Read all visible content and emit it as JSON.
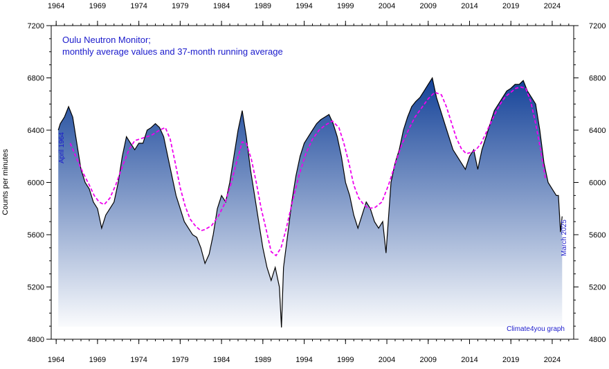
{
  "chart_data": {
    "type": "area",
    "title_line1": "Oulu Neutron Monitor;",
    "title_line2": "monthly average values and 37-month running average",
    "ylabel": "Counts per minutes",
    "start_label": "April 1964",
    "end_label": "March 2025",
    "credit": "Climate4you graph",
    "x_range": [
      1963.4,
      2026.6
    ],
    "ylim": [
      4800,
      7200
    ],
    "x_ticks": [
      1964,
      1969,
      1974,
      1979,
      1984,
      1989,
      1994,
      1999,
      2004,
      2009,
      2014,
      2019,
      2024
    ],
    "y_ticks": [
      4800,
      5200,
      5600,
      6000,
      6400,
      6800,
      7200
    ],
    "colors": {
      "fill_top": "#0a3a94",
      "fill_bottom": "#ffffff",
      "monthly_line": "#000000",
      "running_avg_line": "#ee00ee",
      "text": "#1a1acc"
    },
    "series": [
      {
        "style": "monthly",
        "x": [
          1964.25,
          1964.5,
          1965.0,
          1965.5,
          1966.0,
          1966.5,
          1967.0,
          1967.5,
          1968.0,
          1968.5,
          1969.0,
          1969.5,
          1970.0,
          1970.5,
          1971.0,
          1971.5,
          1972.0,
          1972.5,
          1973.0,
          1973.5,
          1974.0,
          1974.5,
          1975.0,
          1975.5,
          1976.0,
          1976.5,
          1977.0,
          1977.5,
          1978.0,
          1978.5,
          1979.0,
          1979.5,
          1980.0,
          1980.5,
          1981.0,
          1981.5,
          1982.0,
          1982.5,
          1983.0,
          1983.5,
          1984.0,
          1984.5,
          1985.0,
          1985.5,
          1986.0,
          1986.5,
          1987.0,
          1987.5,
          1988.0,
          1988.5,
          1989.0,
          1989.5,
          1990.0,
          1990.5,
          1991.0,
          1991.25,
          1991.5,
          1992.0,
          1992.5,
          1993.0,
          1993.5,
          1994.0,
          1994.5,
          1995.0,
          1995.5,
          1996.0,
          1996.5,
          1997.0,
          1997.5,
          1998.0,
          1998.5,
          1999.0,
          1999.5,
          2000.0,
          2000.5,
          2001.0,
          2001.5,
          2002.0,
          2002.5,
          2003.0,
          2003.5,
          2003.9,
          2004.5,
          2005.0,
          2005.5,
          2006.0,
          2006.5,
          2007.0,
          2007.5,
          2008.0,
          2008.5,
          2009.0,
          2009.5,
          2010.0,
          2010.5,
          2011.0,
          2011.5,
          2012.0,
          2012.5,
          2013.0,
          2013.5,
          2014.0,
          2014.5,
          2015.0,
          2015.5,
          2016.0,
          2016.5,
          2017.0,
          2017.5,
          2018.0,
          2018.5,
          2019.0,
          2019.5,
          2020.0,
          2020.5,
          2021.0,
          2021.5,
          2022.0,
          2022.5,
          2023.0,
          2023.5,
          2024.0,
          2024.5,
          2024.75,
          2025.0,
          2025.2
        ],
        "y": [
          6400,
          6450,
          6500,
          6580,
          6500,
          6300,
          6100,
          6000,
          5950,
          5850,
          5800,
          5650,
          5750,
          5800,
          5850,
          6000,
          6200,
          6350,
          6300,
          6250,
          6300,
          6300,
          6400,
          6420,
          6450,
          6420,
          6350,
          6200,
          6050,
          5900,
          5800,
          5700,
          5650,
          5600,
          5580,
          5500,
          5380,
          5450,
          5600,
          5800,
          5900,
          5850,
          6000,
          6200,
          6400,
          6550,
          6350,
          6100,
          5900,
          5700,
          5500,
          5350,
          5250,
          5350,
          5200,
          4890,
          5350,
          5600,
          5850,
          6050,
          6200,
          6300,
          6350,
          6400,
          6450,
          6480,
          6500,
          6520,
          6450,
          6350,
          6200,
          6000,
          5900,
          5750,
          5650,
          5750,
          5850,
          5800,
          5700,
          5650,
          5700,
          5460,
          6000,
          6150,
          6250,
          6400,
          6500,
          6580,
          6620,
          6650,
          6700,
          6750,
          6800,
          6650,
          6550,
          6450,
          6350,
          6250,
          6200,
          6150,
          6100,
          6200,
          6250,
          6100,
          6250,
          6350,
          6450,
          6550,
          6600,
          6650,
          6700,
          6720,
          6750,
          6750,
          6780,
          6700,
          6650,
          6600,
          6400,
          6150,
          6000,
          5950,
          5900,
          5900,
          5620,
          5740
        ]
      },
      {
        "style": "running_average",
        "x": [
          1965.7,
          1966.5,
          1967.2,
          1968.0,
          1968.6,
          1969.2,
          1969.8,
          1970.5,
          1971.2,
          1972.0,
          1972.8,
          1973.5,
          1974.5,
          1975.5,
          1976.5,
          1977.2,
          1977.8,
          1978.4,
          1979.0,
          1979.6,
          1980.2,
          1980.8,
          1981.5,
          1982.0,
          1982.8,
          1983.6,
          1984.4,
          1985.2,
          1985.8,
          1986.5,
          1987.0,
          1987.6,
          1988.2,
          1988.8,
          1989.4,
          1990.0,
          1990.6,
          1991.2,
          1991.8,
          1992.6,
          1993.4,
          1994.2,
          1995.0,
          1995.8,
          1996.6,
          1997.4,
          1998.2,
          1998.8,
          1999.4,
          2000.0,
          2000.6,
          2001.2,
          2001.8,
          2002.6,
          2003.4,
          2004.2,
          2005.0,
          2005.8,
          2006.6,
          2007.4,
          2008.2,
          2009.0,
          2009.8,
          2010.6,
          2011.2,
          2011.8,
          2012.4,
          2013.0,
          2013.6,
          2014.2,
          2014.8,
          2015.4,
          2016.0,
          2016.6,
          2017.2,
          2017.8,
          2018.4,
          2019.0,
          2019.6,
          2020.2,
          2020.8,
          2021.4,
          2022.0,
          2022.6,
          2023.2
        ],
        "y": [
          6300,
          6180,
          6080,
          5980,
          5900,
          5850,
          5830,
          5880,
          5980,
          6120,
          6250,
          6320,
          6340,
          6360,
          6400,
          6420,
          6330,
          6150,
          5960,
          5820,
          5720,
          5670,
          5630,
          5640,
          5670,
          5740,
          5840,
          6000,
          6150,
          6310,
          6300,
          6180,
          6000,
          5800,
          5640,
          5470,
          5440,
          5500,
          5640,
          5860,
          6060,
          6220,
          6330,
          6400,
          6440,
          6470,
          6420,
          6300,
          6150,
          5980,
          5880,
          5830,
          5800,
          5810,
          5850,
          5980,
          6140,
          6290,
          6400,
          6500,
          6570,
          6640,
          6690,
          6670,
          6580,
          6460,
          6340,
          6260,
          6220,
          6230,
          6250,
          6300,
          6380,
          6460,
          6540,
          6610,
          6660,
          6690,
          6720,
          6730,
          6720,
          6620,
          6450,
          6250,
          6020
        ]
      }
    ]
  }
}
